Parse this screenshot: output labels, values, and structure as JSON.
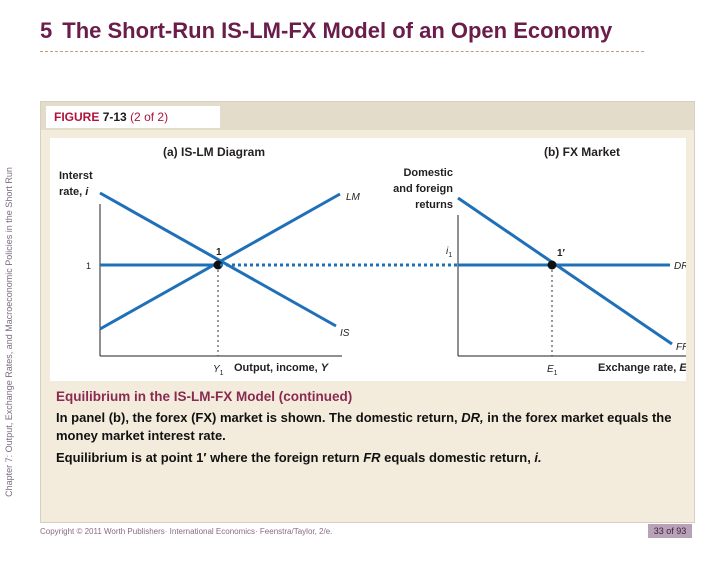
{
  "slide": {
    "number": "5",
    "title": "The Short-Run IS-LM-FX Model of an Open Economy",
    "side_text": "Chapter 7: Output, Exchange Rates, and Macroeconomic Policies in the Short Run"
  },
  "figure": {
    "label": "FIGURE",
    "number": "7-13",
    "part": "(2 of 2)"
  },
  "diagram": {
    "panel_a": {
      "title": "(a) IS-LM Diagram",
      "y_label_line1": "Interst",
      "y_label_line2_text": "rate, ",
      "y_label_line2_var": "i",
      "x_label_text": "Output, income, ",
      "x_label_var": "Y",
      "lm_label": "LM",
      "is_label": "IS",
      "point_label": "1",
      "y_tick_label": "1",
      "x_tick_label": "Y",
      "x_tick_sub": "1"
    },
    "panel_b": {
      "title": "(b) FX Market",
      "y_label_line1": "Domestic",
      "y_label_line2": "and foreign",
      "y_label_line3": "returns",
      "x_label_text": "Exchange rate, ",
      "x_label_var": "E",
      "dr_label": "DR",
      "fr_label": "FR",
      "point_label": "1′",
      "y_tick_label": "i",
      "y_tick_sub": "1",
      "x_tick_label": "E",
      "x_tick_sub": "1"
    },
    "colors": {
      "curve": "#1f70b8",
      "axis": "#222222",
      "text": "#231f20",
      "point": "#111111"
    }
  },
  "caption": {
    "heading": "Equilibrium in the IS-LM-FX Model (continued)",
    "p1_a": "In panel (b), the forex (FX) market is shown. The domestic return, ",
    "p1_b": "DR,",
    "p1_c": " in the forex market equals the money market interest rate.",
    "p2_a": "Equilibrium is at point 1′ where the foreign return ",
    "p2_b": "FR",
    "p2_c": " equals domestic return, ",
    "p2_d": "i."
  },
  "footer": {
    "copyright": "Copyright © 2011 Worth Publishers· International Economics· Feenstra/Taylor, 2/e.",
    "page": "33 of 93"
  }
}
